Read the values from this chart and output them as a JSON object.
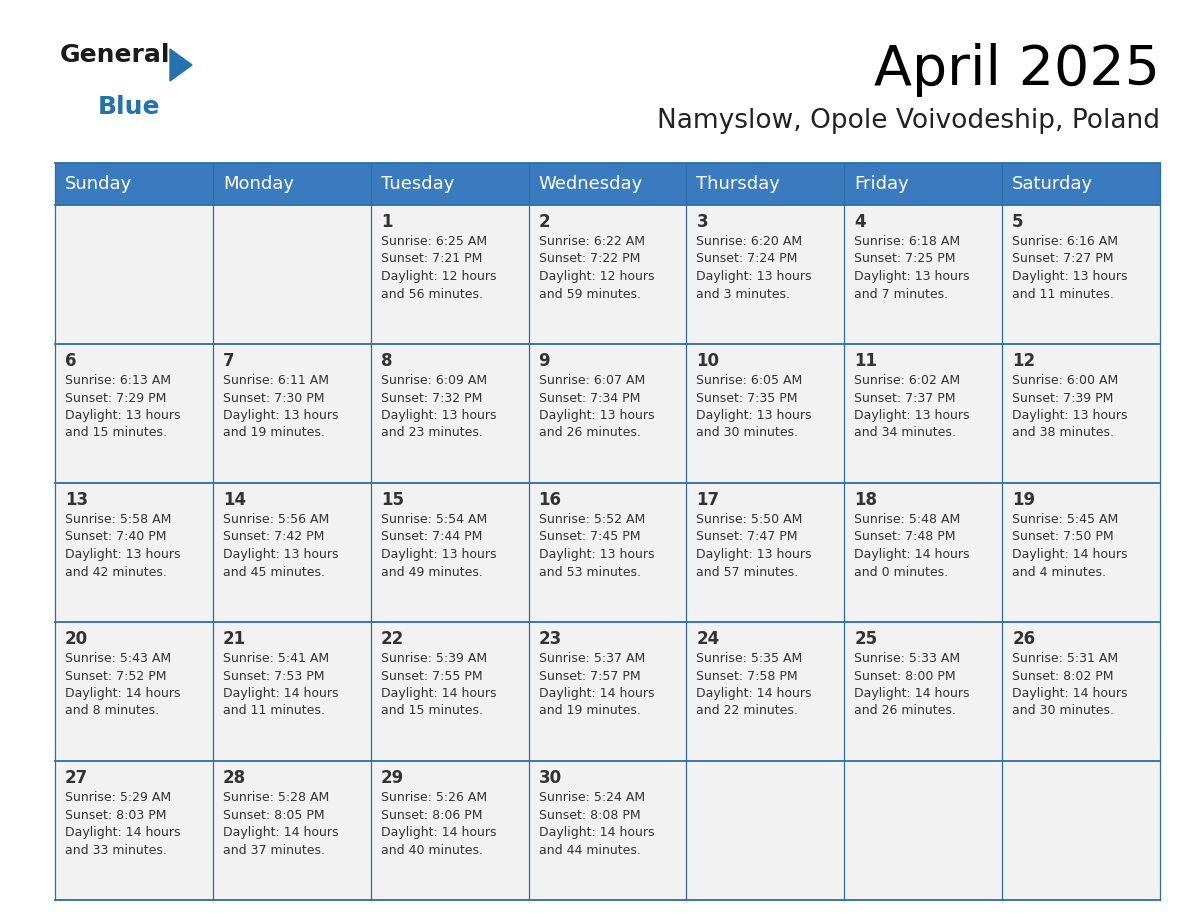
{
  "title": "April 2025",
  "subtitle": "Namyslow, Opole Voivodeship, Poland",
  "header_bg_color": "#3a7abf",
  "header_text_color": "#ffffff",
  "cell_bg_color": "#f2f2f2",
  "border_color": "#2e6da4",
  "text_color": "#333333",
  "days_of_week": [
    "Sunday",
    "Monday",
    "Tuesday",
    "Wednesday",
    "Thursday",
    "Friday",
    "Saturday"
  ],
  "calendar": [
    [
      {
        "day": "",
        "info": ""
      },
      {
        "day": "",
        "info": ""
      },
      {
        "day": "1",
        "info": "Sunrise: 6:25 AM\nSunset: 7:21 PM\nDaylight: 12 hours\nand 56 minutes."
      },
      {
        "day": "2",
        "info": "Sunrise: 6:22 AM\nSunset: 7:22 PM\nDaylight: 12 hours\nand 59 minutes."
      },
      {
        "day": "3",
        "info": "Sunrise: 6:20 AM\nSunset: 7:24 PM\nDaylight: 13 hours\nand 3 minutes."
      },
      {
        "day": "4",
        "info": "Sunrise: 6:18 AM\nSunset: 7:25 PM\nDaylight: 13 hours\nand 7 minutes."
      },
      {
        "day": "5",
        "info": "Sunrise: 6:16 AM\nSunset: 7:27 PM\nDaylight: 13 hours\nand 11 minutes."
      }
    ],
    [
      {
        "day": "6",
        "info": "Sunrise: 6:13 AM\nSunset: 7:29 PM\nDaylight: 13 hours\nand 15 minutes."
      },
      {
        "day": "7",
        "info": "Sunrise: 6:11 AM\nSunset: 7:30 PM\nDaylight: 13 hours\nand 19 minutes."
      },
      {
        "day": "8",
        "info": "Sunrise: 6:09 AM\nSunset: 7:32 PM\nDaylight: 13 hours\nand 23 minutes."
      },
      {
        "day": "9",
        "info": "Sunrise: 6:07 AM\nSunset: 7:34 PM\nDaylight: 13 hours\nand 26 minutes."
      },
      {
        "day": "10",
        "info": "Sunrise: 6:05 AM\nSunset: 7:35 PM\nDaylight: 13 hours\nand 30 minutes."
      },
      {
        "day": "11",
        "info": "Sunrise: 6:02 AM\nSunset: 7:37 PM\nDaylight: 13 hours\nand 34 minutes."
      },
      {
        "day": "12",
        "info": "Sunrise: 6:00 AM\nSunset: 7:39 PM\nDaylight: 13 hours\nand 38 minutes."
      }
    ],
    [
      {
        "day": "13",
        "info": "Sunrise: 5:58 AM\nSunset: 7:40 PM\nDaylight: 13 hours\nand 42 minutes."
      },
      {
        "day": "14",
        "info": "Sunrise: 5:56 AM\nSunset: 7:42 PM\nDaylight: 13 hours\nand 45 minutes."
      },
      {
        "day": "15",
        "info": "Sunrise: 5:54 AM\nSunset: 7:44 PM\nDaylight: 13 hours\nand 49 minutes."
      },
      {
        "day": "16",
        "info": "Sunrise: 5:52 AM\nSunset: 7:45 PM\nDaylight: 13 hours\nand 53 minutes."
      },
      {
        "day": "17",
        "info": "Sunrise: 5:50 AM\nSunset: 7:47 PM\nDaylight: 13 hours\nand 57 minutes."
      },
      {
        "day": "18",
        "info": "Sunrise: 5:48 AM\nSunset: 7:48 PM\nDaylight: 14 hours\nand 0 minutes."
      },
      {
        "day": "19",
        "info": "Sunrise: 5:45 AM\nSunset: 7:50 PM\nDaylight: 14 hours\nand 4 minutes."
      }
    ],
    [
      {
        "day": "20",
        "info": "Sunrise: 5:43 AM\nSunset: 7:52 PM\nDaylight: 14 hours\nand 8 minutes."
      },
      {
        "day": "21",
        "info": "Sunrise: 5:41 AM\nSunset: 7:53 PM\nDaylight: 14 hours\nand 11 minutes."
      },
      {
        "day": "22",
        "info": "Sunrise: 5:39 AM\nSunset: 7:55 PM\nDaylight: 14 hours\nand 15 minutes."
      },
      {
        "day": "23",
        "info": "Sunrise: 5:37 AM\nSunset: 7:57 PM\nDaylight: 14 hours\nand 19 minutes."
      },
      {
        "day": "24",
        "info": "Sunrise: 5:35 AM\nSunset: 7:58 PM\nDaylight: 14 hours\nand 22 minutes."
      },
      {
        "day": "25",
        "info": "Sunrise: 5:33 AM\nSunset: 8:00 PM\nDaylight: 14 hours\nand 26 minutes."
      },
      {
        "day": "26",
        "info": "Sunrise: 5:31 AM\nSunset: 8:02 PM\nDaylight: 14 hours\nand 30 minutes."
      }
    ],
    [
      {
        "day": "27",
        "info": "Sunrise: 5:29 AM\nSunset: 8:03 PM\nDaylight: 14 hours\nand 33 minutes."
      },
      {
        "day": "28",
        "info": "Sunrise: 5:28 AM\nSunset: 8:05 PM\nDaylight: 14 hours\nand 37 minutes."
      },
      {
        "day": "29",
        "info": "Sunrise: 5:26 AM\nSunset: 8:06 PM\nDaylight: 14 hours\nand 40 minutes."
      },
      {
        "day": "30",
        "info": "Sunrise: 5:24 AM\nSunset: 8:08 PM\nDaylight: 14 hours\nand 44 minutes."
      },
      {
        "day": "",
        "info": ""
      },
      {
        "day": "",
        "info": ""
      },
      {
        "day": "",
        "info": ""
      }
    ]
  ],
  "logo_text1": "General",
  "logo_text2": "Blue",
  "logo_color1": "#1a1a1a",
  "logo_color2": "#2473ae",
  "logo_triangle_color": "#2473ae",
  "title_fontsize": 40,
  "subtitle_fontsize": 19,
  "header_fontsize": 13,
  "day_num_fontsize": 12,
  "info_fontsize": 9
}
